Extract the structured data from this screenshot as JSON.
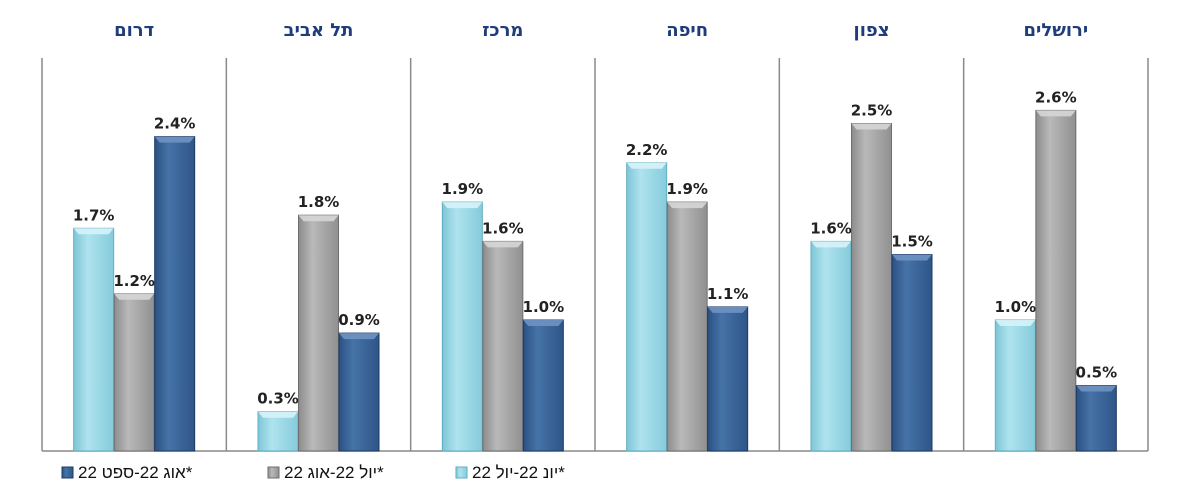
{
  "chart_data": {
    "type": "bar",
    "categories": [
      "ירושלים",
      "צפון",
      "חיפה",
      "מרכז",
      "תל אביב",
      "דרום"
    ],
    "series": [
      {
        "name": "יונ 22-יול 22*",
        "color": "#9edbe8",
        "values": [
          1.0,
          1.6,
          2.2,
          1.9,
          0.3,
          1.7
        ],
        "labels": [
          "1.0%",
          "1.6%",
          "2.2%",
          "1.9%",
          "0.3%",
          "1.7%"
        ]
      },
      {
        "name": "יול 22-אוג 22*",
        "color": "#a6a6a6",
        "values": [
          2.6,
          2.5,
          1.9,
          1.6,
          1.8,
          1.2
        ],
        "labels": [
          "2.6%",
          "2.5%",
          "1.9%",
          "1.6%",
          "1.8%",
          "1.2%"
        ]
      },
      {
        "name": "אוג 22-ספט 22*",
        "color": "#3a6598",
        "values": [
          0.5,
          1.5,
          1.1,
          1.0,
          0.9,
          2.4
        ],
        "labels": [
          "0.5%",
          "1.5%",
          "1.1%",
          "1.0%",
          "0.9%",
          "2.4%"
        ]
      }
    ],
    "ylim": [
      0,
      2.6
    ],
    "category_order": "right-to-left",
    "grid": false,
    "legend_position": "bottom-left"
  }
}
